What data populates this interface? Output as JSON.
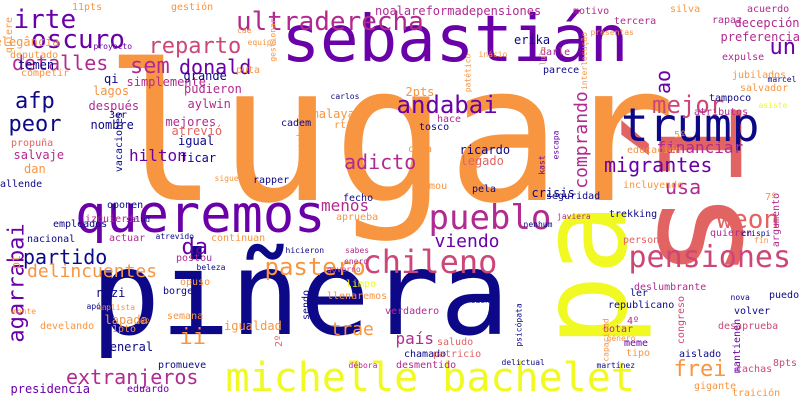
{
  "palette": {
    "dark_blue": "#0d0887",
    "purple": "#6a00a8",
    "magenta": "#b12a90",
    "pink": "#cc4778",
    "salmon": "#e16462",
    "orange": "#f89540",
    "yellow": "#f0f921"
  },
  "words": [
    {
      "text": "lugar",
      "color": "orange"
    },
    {
      "text": "sebastián",
      "color": "purple"
    },
    {
      "text": "piñera",
      "color": "dark_blue"
    },
    {
      "text": "sí",
      "color": "salmon"
    },
    {
      "text": "pa",
      "color": "yellow"
    },
    {
      "text": "queremos",
      "color": "purple"
    },
    {
      "text": "michelle bachelet",
      "color": "yellow"
    },
    {
      "text": "trump",
      "color": "dark_blue"
    },
    {
      "text": "pueblo",
      "color": "magenta"
    },
    {
      "text": "chileno",
      "color": "pink"
    },
    {
      "text": "pensiones",
      "color": "pink"
    },
    {
      "text": "ultraderecha",
      "color": "magenta"
    },
    {
      "text": "oscuro",
      "color": "purple"
    },
    {
      "text": "detalles",
      "color": "magenta"
    },
    {
      "text": "reparto",
      "color": "pink"
    },
    {
      "text": "donald",
      "color": "purple"
    },
    {
      "text": "sem",
      "color": "magenta"
    },
    {
      "text": "irte",
      "color": "purple"
    },
    {
      "text": "afp",
      "color": "dark_blue"
    },
    {
      "text": "peor",
      "color": "dark_blue"
    },
    {
      "text": "adicto",
      "color": "magenta"
    },
    {
      "text": "andabai",
      "color": "purple"
    },
    {
      "text": "mejor",
      "color": "pink"
    },
    {
      "text": "comprando",
      "color": "magenta"
    },
    {
      "text": "migrantes",
      "color": "purple"
    },
    {
      "text": "weon",
      "color": "salmon"
    },
    {
      "text": "usa",
      "color": "magenta"
    },
    {
      "text": "viendo",
      "color": "purple"
    },
    {
      "text": "pastero",
      "color": "orange"
    },
    {
      "text": "partido",
      "color": "dark_blue"
    },
    {
      "text": "da",
      "color": "purple"
    },
    {
      "text": "agarrabai",
      "color": "purple"
    },
    {
      "text": "delincuentes",
      "color": "orange"
    },
    {
      "text": "extranjeros",
      "color": "magenta"
    },
    {
      "text": "frei",
      "color": "orange"
    },
    {
      "text": "ii",
      "color": "orange"
    },
    {
      "text": "un",
      "color": "purple"
    },
    {
      "text": "ao",
      "color": "purple"
    },
    {
      "text": "hilton",
      "color": "purple"
    },
    {
      "text": "financiar",
      "color": "magenta"
    },
    {
      "text": "país",
      "color": "magenta"
    },
    {
      "text": "trae",
      "color": "orange"
    },
    {
      "text": "menos",
      "color": "magenta"
    },
    {
      "text": "noalareformadepensiones",
      "color": "magenta"
    },
    {
      "text": "11pts",
      "color": "orange"
    },
    {
      "text": "gestión",
      "color": "orange"
    },
    {
      "text": "motivo",
      "color": "magenta"
    },
    {
      "text": "silva",
      "color": "orange"
    },
    {
      "text": "rapaz",
      "color": "magenta"
    },
    {
      "text": "acuerdo",
      "color": "magenta"
    },
    {
      "text": "decepción",
      "color": "magenta"
    },
    {
      "text": "preferencias",
      "color": "magenta"
    },
    {
      "text": "tercera",
      "color": "magenta"
    },
    {
      "text": "erika",
      "color": "dark_blue"
    },
    {
      "text": "darle",
      "color": "magenta"
    },
    {
      "text": "parece",
      "color": "dark_blue"
    },
    {
      "text": "expulse",
      "color": "magenta"
    },
    {
      "text": "jubilados",
      "color": "orange"
    },
    {
      "text": "salvador",
      "color": "orange"
    },
    {
      "text": "marcel",
      "color": "dark_blue"
    },
    {
      "text": "tampoco",
      "color": "dark_blue"
    },
    {
      "text": "atributos",
      "color": "magenta"
    },
    {
      "text": "asiste",
      "color": "yellow"
    },
    {
      "text": "educación",
      "color": "orange"
    },
    {
      "text": "presidencia",
      "color": "purple"
    },
    {
      "text": "eduardo",
      "color": "purple"
    },
    {
      "text": "traición",
      "color": "orange"
    },
    {
      "text": "gigante",
      "color": "orange"
    },
    {
      "text": "cachas",
      "color": "pink"
    },
    {
      "text": "8pts",
      "color": "pink"
    },
    {
      "text": "aislado",
      "color": "dark_blue"
    },
    {
      "text": "desmentido",
      "color": "magenta"
    },
    {
      "text": "chamado",
      "color": "dark_blue"
    },
    {
      "text": "delictual",
      "color": "dark_blue"
    },
    {
      "text": "martínez",
      "color": "dark_blue"
    },
    {
      "text": "débora",
      "color": "magenta"
    },
    {
      "text": "psicópata",
      "color": "dark_blue"
    },
    {
      "text": "patricio",
      "color": "salmon"
    },
    {
      "text": "saludo",
      "color": "salmon"
    },
    {
      "text": "verdadero",
      "color": "magenta"
    },
    {
      "text": "botar",
      "color": "magenta"
    },
    {
      "text": "género",
      "color": "orange"
    },
    {
      "text": "meme",
      "color": "purple"
    },
    {
      "text": "tipo",
      "color": "orange"
    },
    {
      "text": "republicano",
      "color": "dark_blue"
    },
    {
      "text": "deslumbrante",
      "color": "magenta"
    },
    {
      "text": "volver",
      "color": "dark_blue"
    },
    {
      "text": "nova",
      "color": "dark_blue"
    },
    {
      "text": "puedo",
      "color": "dark_blue"
    },
    {
      "text": "desaprueba",
      "color": "pink"
    },
    {
      "text": "mantienen",
      "color": "purple"
    },
    {
      "text": "congreso",
      "color": "pink"
    },
    {
      "text": "capacidad",
      "color": "orange"
    },
    {
      "text": "4º",
      "color": "magenta"
    },
    {
      "text": "ler",
      "color": "dark_blue"
    },
    {
      "text": "personal",
      "color": "salmon"
    },
    {
      "text": "quieren",
      "color": "magenta"
    },
    {
      "text": "fin",
      "color": "orange"
    },
    {
      "text": "crispi",
      "color": "dark_blue"
    },
    {
      "text": "argumento",
      "color": "magenta"
    },
    {
      "text": "7º",
      "color": "orange"
    },
    {
      "text": "incluyendo",
      "color": "orange"
    },
    {
      "text": "5º",
      "color": "orange"
    },
    {
      "text": "trekking",
      "color": "dark_blue"
    },
    {
      "text": "seguridad",
      "color": "dark_blue"
    },
    {
      "text": "javiera",
      "color": "magenta"
    },
    {
      "text": "nenhum",
      "color": "dark_blue"
    },
    {
      "text": "kast",
      "color": "purple"
    },
    {
      "text": "escapa",
      "color": "purple"
    },
    {
      "text": "crisis",
      "color": "dark_blue"
    },
    {
      "text": "tomou",
      "color": "orange"
    },
    {
      "text": "ricardo",
      "color": "dark_blue"
    },
    {
      "text": "legado",
      "color": "salmon"
    },
    {
      "text": "tosco",
      "color": "dark_blue"
    },
    {
      "text": "hace",
      "color": "magenta"
    },
    {
      "text": "cada",
      "color": "orange"
    },
    {
      "text": "2pts",
      "color": "orange"
    },
    {
      "text": "pela",
      "color": "dark_blue"
    },
    {
      "text": "malaya",
      "color": "orange"
    },
    {
      "text": "rt",
      "color": "orange"
    },
    {
      "text": "carlos",
      "color": "dark_blue"
    },
    {
      "text": "aprovechado",
      "color": "orange"
    },
    {
      "text": "cadem",
      "color": "dark_blue"
    },
    {
      "text": "rapper",
      "color": "dark_blue"
    },
    {
      "text": "fecho",
      "color": "dark_blue"
    },
    {
      "text": "aprueba",
      "color": "orange"
    },
    {
      "text": "sabes",
      "color": "magenta"
    },
    {
      "text": "hicieron",
      "color": "dark_blue"
    },
    {
      "text": "enero",
      "color": "magenta"
    },
    {
      "text": "governo",
      "color": "pink"
    },
    {
      "text": "limpo",
      "color": "yellow"
    },
    {
      "text": "caen",
      "color": "dark_blue"
    },
    {
      "text": "llenaremos",
      "color": "orange"
    },
    {
      "text": "sendo",
      "color": "dark_blue"
    },
    {
      "text": "igualdad",
      "color": "orange"
    },
    {
      "text": "2º",
      "color": "salmon"
    },
    {
      "text": "promueve",
      "color": "dark_blue"
    },
    {
      "text": "semana",
      "color": "orange"
    },
    {
      "text": "borges",
      "color": "dark_blue"
    },
    {
      "text": "opuso",
      "color": "orange"
    },
    {
      "text": "postou",
      "color": "magenta"
    },
    {
      "text": "beleza",
      "color": "dark_blue"
    },
    {
      "text": "continuan",
      "color": "orange"
    },
    {
      "text": "atrevido",
      "color": "dark_blue"
    },
    {
      "text": "actuar",
      "color": "magenta"
    },
    {
      "text": "nacional",
      "color": "dark_blue"
    },
    {
      "text": "salud",
      "color": "dark_blue"
    },
    {
      "text": "empleados",
      "color": "dark_blue"
    },
    {
      "text": "izquierda",
      "color": "magenta"
    },
    {
      "text": "oponen",
      "color": "dark_blue"
    },
    {
      "text": "general",
      "color": "dark_blue"
    },
    {
      "text": "1pto",
      "color": "orange"
    },
    {
      "text": "lapada",
      "color": "orange"
    },
    {
      "text": "nazi",
      "color": "dark_blue"
    },
    {
      "text": "6º",
      "color": "orange"
    },
    {
      "text": "amplista",
      "color": "orange"
    },
    {
      "text": "develando",
      "color": "orange"
    },
    {
      "text": "após",
      "color": "dark_blue"
    },
    {
      "text": "monte",
      "color": "orange"
    },
    {
      "text": "pt",
      "color": "orange"
    },
    {
      "text": "allende",
      "color": "dark_blue"
    },
    {
      "text": "dan",
      "color": "orange"
    },
    {
      "text": "salvaje",
      "color": "magenta"
    },
    {
      "text": "propuña",
      "color": "salmon"
    },
    {
      "text": "deputado",
      "color": "orange"
    },
    {
      "text": "elegância",
      "color": "orange"
    },
    {
      "text": "temen",
      "color": "dark_blue"
    },
    {
      "text": "competir",
      "color": "orange"
    },
    {
      "text": "quiere",
      "color": "orange"
    },
    {
      "text": "qi",
      "color": "dark_blue"
    },
    {
      "text": "lagos",
      "color": "orange"
    },
    {
      "text": "después",
      "color": "magenta"
    },
    {
      "text": "3er",
      "color": "dark_blue"
    },
    {
      "text": "nombre",
      "color": "dark_blue"
    },
    {
      "text": "vacaciones",
      "color": "dark_blue"
    },
    {
      "text": "nikolas",
      "color": "orange"
    },
    {
      "text": "simplemente",
      "color": "magenta"
    },
    {
      "text": "grande",
      "color": "dark_blue"
    },
    {
      "text": "pudieron",
      "color": "magenta"
    },
    {
      "text": "aylwin",
      "color": "magenta"
    },
    {
      "text": "puta",
      "color": "orange"
    },
    {
      "text": "mejores",
      "color": "magenta"
    },
    {
      "text": "igual",
      "color": "dark_blue"
    },
    {
      "text": "atrevió",
      "color": "salmon"
    },
    {
      "text": "ficar",
      "color": "dark_blue"
    },
    {
      "text": "siguen",
      "color": "orange"
    },
    {
      "text": "gestionar",
      "color": "orange"
    },
    {
      "text": "patético",
      "color": "orange"
    },
    {
      "text": "inácio",
      "color": "orange"
    },
    {
      "text": "lula",
      "color": "orange"
    },
    {
      "text": "interlocução",
      "color": "orange"
    },
    {
      "text": "equipe",
      "color": "orange"
    },
    {
      "text": "presentas",
      "color": "orange"
    },
    {
      "text": "cae",
      "color": "orange"
    },
    {
      "text": "proyecto",
      "color": "purple"
    }
  ]
}
